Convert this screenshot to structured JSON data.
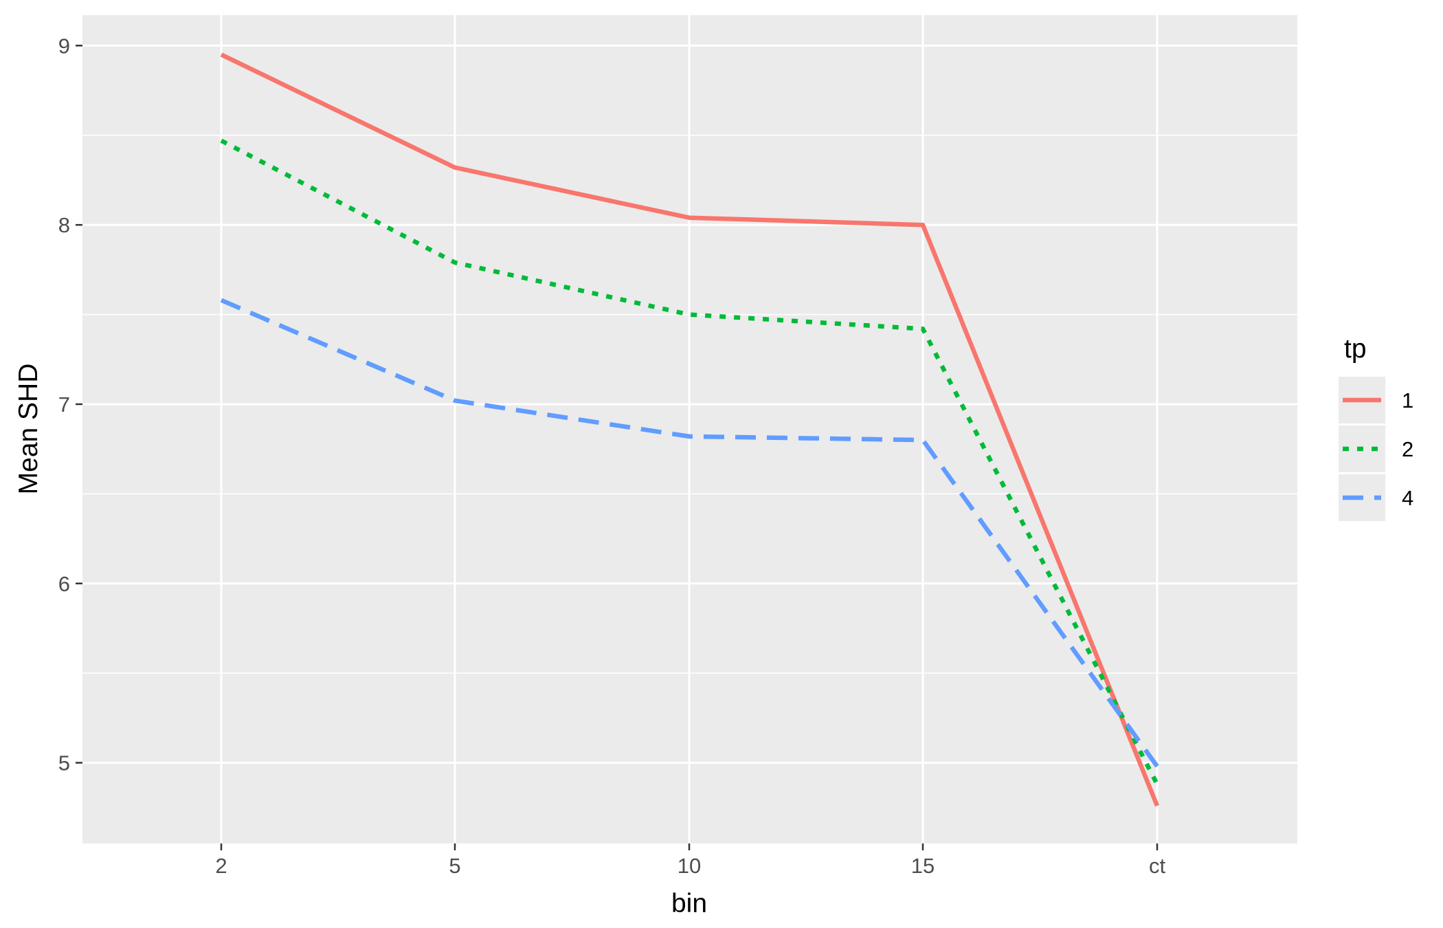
{
  "chart_data": {
    "type": "line",
    "categories": [
      "2",
      "5",
      "10",
      "15",
      "ct"
    ],
    "xlabel": "bin",
    "ylabel": "Mean SHD",
    "yticks": [
      5,
      6,
      7,
      8,
      9
    ],
    "ylim": [
      4.55,
      9.17
    ],
    "grid": true,
    "legend": {
      "title": "tp",
      "position": "right"
    },
    "series": [
      {
        "name": "1",
        "values": [
          8.95,
          8.32,
          8.04,
          8.0,
          4.76
        ],
        "color": "#F8766D",
        "dash": "solid"
      },
      {
        "name": "2",
        "values": [
          8.47,
          7.79,
          7.5,
          7.42,
          4.88
        ],
        "color": "#00BA38",
        "dash": "dotted"
      },
      {
        "name": "4",
        "values": [
          7.58,
          7.02,
          6.82,
          6.8,
          4.98
        ],
        "color": "#619CFF",
        "dash": "dashed"
      }
    ]
  }
}
